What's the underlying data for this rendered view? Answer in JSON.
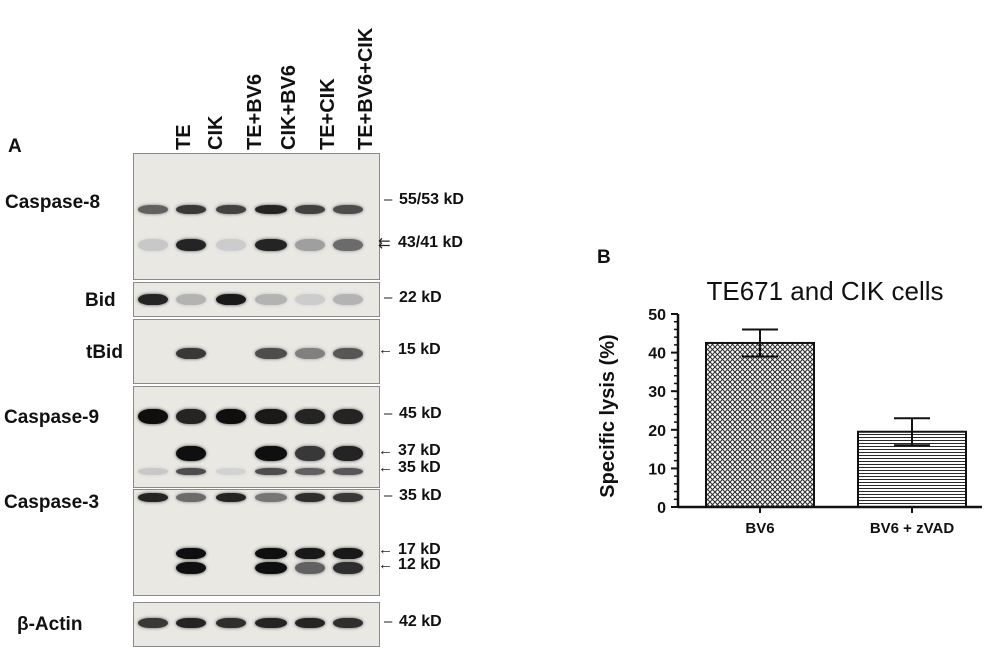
{
  "panel_a": {
    "letter": "A",
    "lanes": [
      "TE",
      "CIK",
      "TE+BV6",
      "CIK+BV6",
      "TE+CIK",
      "TE+BV6+CIK"
    ],
    "rows": [
      {
        "label": "Caspase-8",
        "markers": [
          {
            "marker": "–",
            "text": "55/53 kD"
          },
          {
            "marker": "⇇",
            "text": "43/41 kD"
          }
        ]
      },
      {
        "label": "Bid",
        "markers": [
          {
            "marker": "–",
            "text": "22 kD"
          }
        ]
      },
      {
        "label": "tBid",
        "markers": [
          {
            "marker": "←",
            "text": "15 kD"
          }
        ]
      },
      {
        "label": "Caspase-9",
        "markers": [
          {
            "marker": "–",
            "text": "45 kD"
          },
          {
            "marker": "←",
            "text": "37 kD"
          },
          {
            "marker": "←",
            "text": "35 kD"
          }
        ]
      },
      {
        "label": "Caspase-3",
        "markers": [
          {
            "marker": "–",
            "text": "35 kD"
          },
          {
            "marker": "←",
            "text": "17 kD"
          },
          {
            "marker": "←",
            "text": "12 kD"
          }
        ]
      },
      {
        "label": "β-Actin",
        "markers": [
          {
            "marker": "–",
            "text": "42 kD"
          }
        ]
      }
    ],
    "band_intensity": {
      "caspase8_55": [
        0.6,
        0.8,
        0.75,
        0.9,
        0.75,
        0.7
      ],
      "caspase8_43": [
        0.1,
        0.9,
        0.08,
        0.9,
        0.3,
        0.55
      ],
      "bid_22": [
        0.9,
        0.2,
        0.95,
        0.2,
        0.08,
        0.2
      ],
      "tbid_15": [
        0.0,
        0.8,
        0.0,
        0.7,
        0.45,
        0.65
      ],
      "caspase9_45": [
        1.0,
        0.9,
        1.0,
        0.95,
        0.9,
        0.9
      ],
      "caspase9_37": [
        0.0,
        1.0,
        0.0,
        1.0,
        0.8,
        0.9
      ],
      "caspase9_35": [
        0.1,
        0.7,
        0.05,
        0.7,
        0.6,
        0.65
      ],
      "caspase3_35": [
        0.9,
        0.55,
        0.9,
        0.5,
        0.85,
        0.8
      ],
      "caspase3_17": [
        0.0,
        1.0,
        0.0,
        1.0,
        0.95,
        0.95
      ],
      "caspase3_12": [
        0.0,
        1.0,
        0.0,
        1.0,
        0.6,
        0.85
      ],
      "actin_42": [
        0.8,
        0.9,
        0.85,
        0.9,
        0.9,
        0.85
      ]
    }
  },
  "panel_b": {
    "letter": "B"
  },
  "chart_data": {
    "type": "bar",
    "title": "TE671 and CIK cells",
    "ylabel": "Specific lysis (%)",
    "xlabel": "",
    "categories": [
      "BV6",
      "BV6 + zVAD"
    ],
    "values": [
      42.5,
      19.5
    ],
    "error": [
      3.5,
      3.5
    ],
    "ylim": [
      0,
      50
    ],
    "yticks": [
      0,
      10,
      20,
      30,
      40,
      50
    ],
    "grid": false,
    "bar_patterns": [
      "crosshatch",
      "horizontal-lines"
    ]
  }
}
